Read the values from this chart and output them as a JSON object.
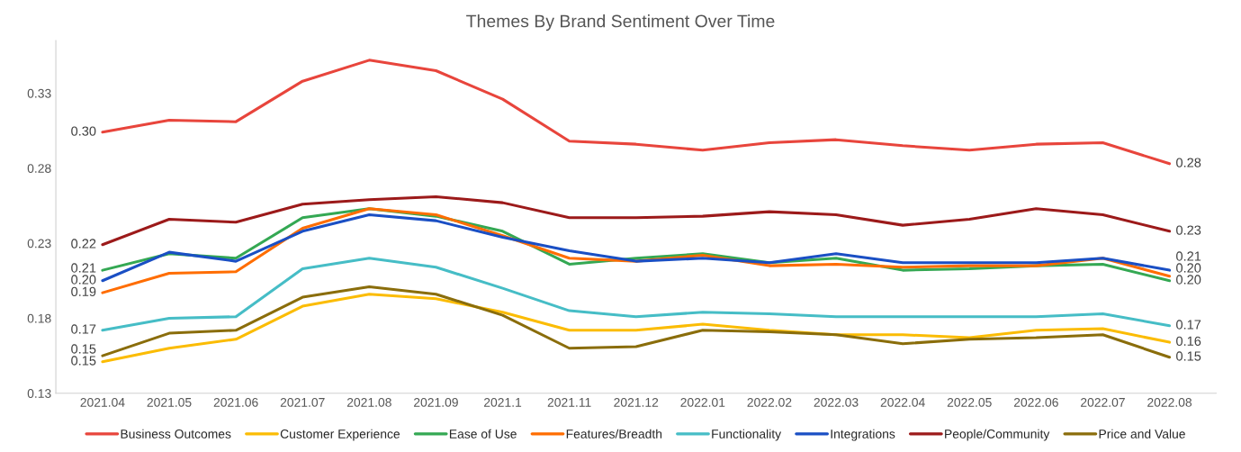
{
  "chart_data": {
    "type": "line",
    "title": "Themes By Brand Sentiment Over Time",
    "categories": [
      "2021.04",
      "2021.05",
      "2021.06",
      "2021.07",
      "2021.08",
      "2021.09",
      "2021.1",
      "2021.11",
      "2021.12",
      "2022.01",
      "2022.02",
      "2022.03",
      "2022.04",
      "2022.05",
      "2022.06",
      "2022.07",
      "2022.08"
    ],
    "series": [
      {
        "name": "Business Outcomes",
        "color": "#e8453c",
        "values": [
          0.299,
          0.307,
          0.306,
          0.333,
          0.347,
          0.34,
          0.321,
          0.293,
          0.291,
          0.287,
          0.292,
          0.294,
          0.29,
          0.287,
          0.291,
          0.292,
          0.278
        ],
        "value_labels": [
          "0.30",
          null,
          null,
          null,
          null,
          null,
          null,
          null,
          null,
          null,
          null,
          null,
          null,
          null,
          null,
          null,
          "0.28"
        ]
      },
      {
        "name": "Customer Experience",
        "color": "#fbbc04",
        "values": [
          0.146,
          0.155,
          0.161,
          0.183,
          0.191,
          0.188,
          0.179,
          0.167,
          0.167,
          0.171,
          0.167,
          0.164,
          0.164,
          0.162,
          0.167,
          0.168,
          0.159
        ],
        "value_labels": [
          "0.15",
          null,
          null,
          null,
          null,
          null,
          null,
          null,
          null,
          null,
          null,
          null,
          null,
          null,
          null,
          null,
          "0.16"
        ]
      },
      {
        "name": "Ease of Use",
        "color": "#34a853",
        "values": [
          0.207,
          0.218,
          0.215,
          0.242,
          0.248,
          0.243,
          0.233,
          0.211,
          0.215,
          0.218,
          0.212,
          0.215,
          0.207,
          0.208,
          0.21,
          0.211,
          0.2
        ],
        "value_labels": [
          "0.21",
          null,
          null,
          null,
          null,
          null,
          null,
          null,
          null,
          null,
          null,
          null,
          null,
          null,
          null,
          null,
          "0.20"
        ]
      },
      {
        "name": "Features/Breadth",
        "color": "#ff6d01",
        "values": [
          0.192,
          0.205,
          0.206,
          0.235,
          0.248,
          0.244,
          0.23,
          0.215,
          0.213,
          0.217,
          0.21,
          0.211,
          0.209,
          0.21,
          0.21,
          0.215,
          0.203
        ],
        "value_labels": [
          "0.19",
          null,
          null,
          null,
          null,
          null,
          null,
          null,
          null,
          null,
          null,
          null,
          null,
          null,
          null,
          null,
          "0.20"
        ]
      },
      {
        "name": "Functionality",
        "color": "#46bdc6",
        "values": [
          0.167,
          0.175,
          0.176,
          0.208,
          0.215,
          0.209,
          0.195,
          0.18,
          0.176,
          0.179,
          0.178,
          0.176,
          0.176,
          0.176,
          0.176,
          0.178,
          0.17
        ],
        "value_labels": [
          "0.17",
          null,
          null,
          null,
          null,
          null,
          null,
          null,
          null,
          null,
          null,
          null,
          null,
          null,
          null,
          null,
          "0.17"
        ]
      },
      {
        "name": "Integrations",
        "color": "#1a4fc4",
        "values": [
          0.2,
          0.219,
          0.213,
          0.233,
          0.244,
          0.24,
          0.229,
          0.22,
          0.213,
          0.215,
          0.212,
          0.218,
          0.212,
          0.212,
          0.212,
          0.215,
          0.207
        ],
        "value_labels": [
          "0.20",
          null,
          null,
          null,
          null,
          null,
          null,
          null,
          null,
          null,
          null,
          null,
          null,
          null,
          null,
          null,
          "0.21"
        ]
      },
      {
        "name": "People/Community",
        "color": "#9c1a1a",
        "values": [
          0.224,
          0.241,
          0.239,
          0.251,
          0.254,
          0.256,
          0.252,
          0.242,
          0.242,
          0.243,
          0.246,
          0.244,
          0.237,
          0.241,
          0.248,
          0.244,
          0.233
        ],
        "value_labels": [
          "0.22",
          null,
          null,
          null,
          null,
          null,
          null,
          null,
          null,
          null,
          null,
          null,
          null,
          null,
          null,
          null,
          "0.23"
        ]
      },
      {
        "name": "Price and Value",
        "color": "#8a6d0b",
        "values": [
          0.15,
          0.165,
          0.167,
          0.189,
          0.196,
          0.191,
          0.177,
          0.155,
          0.156,
          0.167,
          0.166,
          0.164,
          0.158,
          0.161,
          0.162,
          0.164,
          0.149
        ],
        "value_labels": [
          "0.15",
          null,
          null,
          null,
          null,
          null,
          null,
          null,
          null,
          null,
          null,
          null,
          null,
          null,
          null,
          null,
          "0.15"
        ]
      }
    ],
    "ylim": [
      0.125,
      0.36
    ],
    "yticks": [
      {
        "value": 0.125,
        "label": "0.13"
      },
      {
        "value": 0.175,
        "label": "0.18"
      },
      {
        "value": 0.225,
        "label": "0.23"
      },
      {
        "value": 0.275,
        "label": "0.28"
      },
      {
        "value": 0.325,
        "label": "0.33"
      }
    ],
    "legend": "bottom",
    "grid": false,
    "marker": "none",
    "line_style": "solid"
  }
}
